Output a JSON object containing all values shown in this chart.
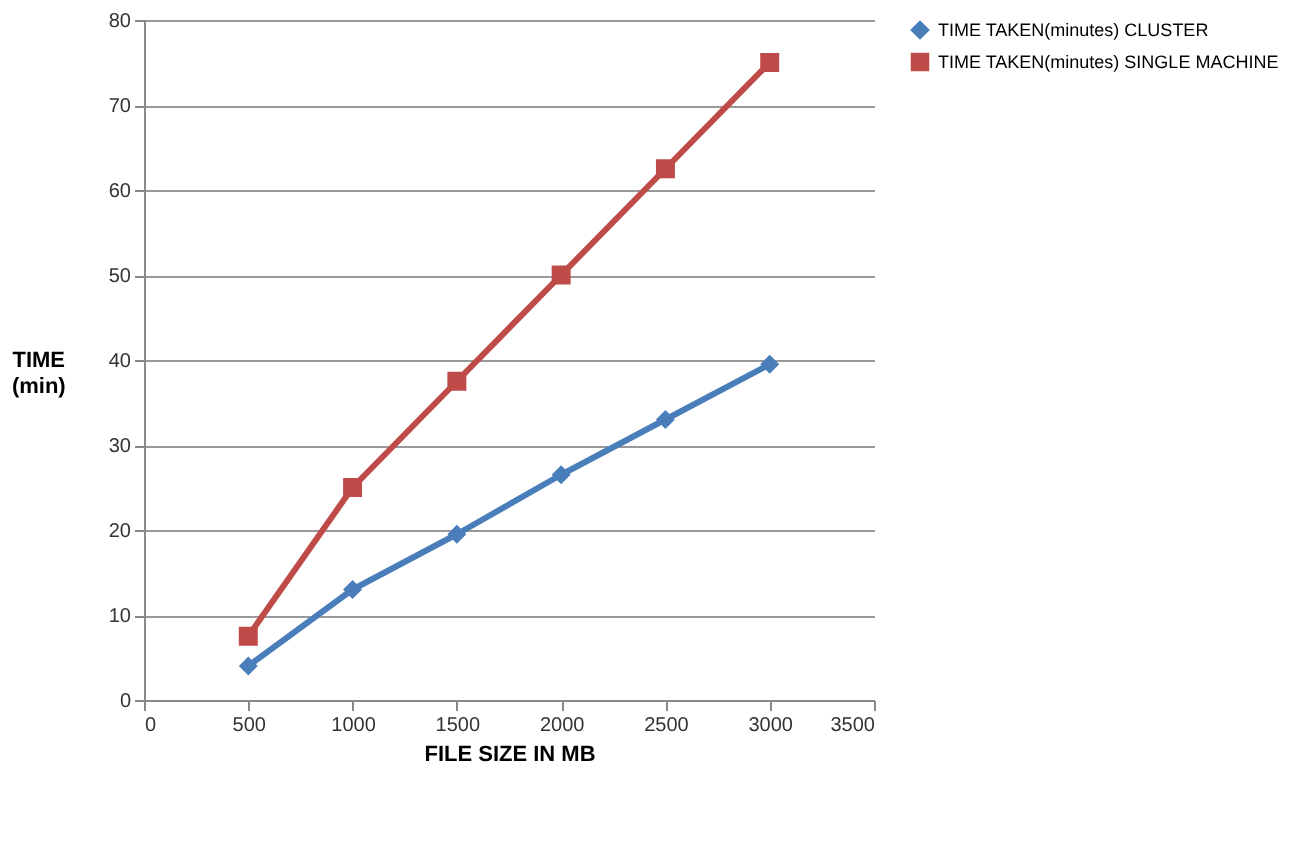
{
  "chart_data": {
    "type": "line",
    "xlabel": "FILE SIZE IN MB",
    "ylabel": "TIME (min)",
    "x": [
      500,
      1000,
      1500,
      2000,
      2500,
      3000
    ],
    "series": [
      {
        "name": "TIME TAKEN(minutes) CLUSTER",
        "color": "#4a7ebb",
        "marker": "diamond",
        "values": [
          4,
          13,
          19.5,
          26.5,
          33,
          39.5
        ]
      },
      {
        "name": "TIME TAKEN(minutes) SINGLE MACHINE",
        "color": "#be4b48",
        "marker": "square",
        "values": [
          7.5,
          25,
          37.5,
          50,
          62.5,
          75
        ]
      }
    ],
    "xlim": [
      0,
      3500
    ],
    "xticks": [
      0,
      500,
      1000,
      1500,
      2000,
      2500,
      3000,
      3500
    ],
    "ylim": [
      0,
      80
    ],
    "yticks": [
      0,
      10,
      20,
      30,
      40,
      50,
      60,
      70,
      80
    ],
    "grid": "y",
    "legend": "right",
    "line_style": "solid"
  }
}
